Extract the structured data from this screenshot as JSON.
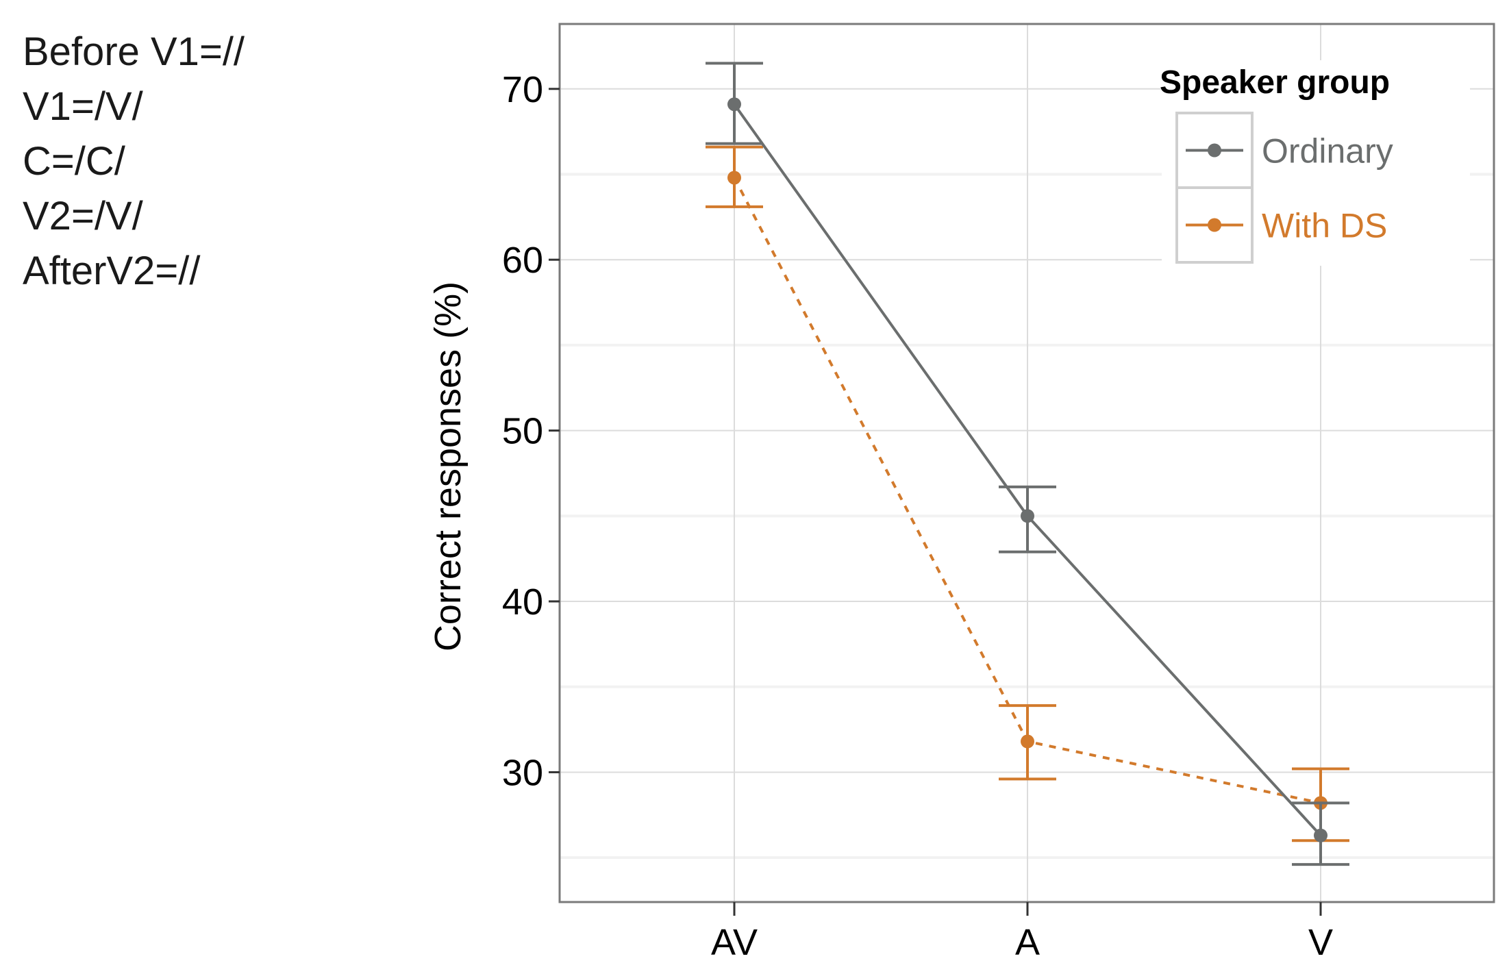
{
  "side_notes": [
    "Before V1=//",
    "V1=/V/",
    "C=/C/",
    "V2=/V/",
    "AfterV2=//"
  ],
  "chart_data": {
    "type": "line",
    "title": "",
    "xlabel": "",
    "ylabel": "Correct responses (%)",
    "ylim": [
      22.4,
      73.8
    ],
    "yticks": [
      30,
      40,
      50,
      60,
      70
    ],
    "grid": true,
    "categories": [
      "AV",
      "A",
      "V"
    ],
    "legend": {
      "title": "Speaker group",
      "position": "top-right"
    },
    "series": [
      {
        "name": "Ordinary",
        "color": "#6b6e6e",
        "line_style": "solid",
        "values": [
          69.1,
          45.0,
          26.3
        ],
        "error_low": [
          66.8,
          42.9,
          24.6
        ],
        "error_high": [
          71.5,
          46.7,
          28.2
        ]
      },
      {
        "name": "With DS",
        "color": "#d27a2c",
        "line_style": "dotted",
        "values": [
          64.8,
          31.8,
          28.2
        ],
        "error_low": [
          63.1,
          29.6,
          26.0
        ],
        "error_high": [
          66.6,
          33.9,
          30.2
        ]
      }
    ]
  }
}
